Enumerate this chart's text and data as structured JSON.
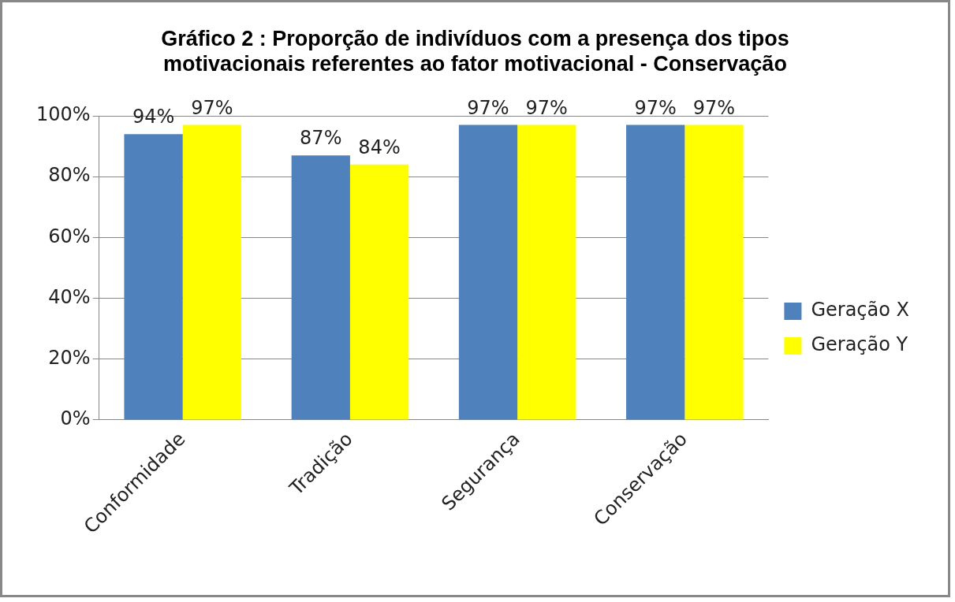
{
  "chart_data": {
    "type": "bar",
    "title": "Gráfico 2  : Proporção de indivíduos com a presença dos tipos motivacionais referentes ao fator motivacional - Conservação",
    "categories": [
      "Conformidade",
      "Tradição",
      "Segurança",
      "Conservação"
    ],
    "series": [
      {
        "name": "Geração X",
        "color": "#4f81bd",
        "values": [
          94,
          87,
          97,
          97
        ],
        "value_labels": [
          "94%",
          "87%",
          "97%",
          "97%"
        ]
      },
      {
        "name": "Geração Y",
        "color": "#ffff00",
        "values": [
          97,
          84,
          97,
          97
        ],
        "value_labels": [
          "97%",
          "84%",
          "97%",
          "97%"
        ]
      }
    ],
    "ylim": [
      0,
      100
    ],
    "yticks": [
      {
        "value": 0,
        "label": "0%"
      },
      {
        "value": 20,
        "label": "20%"
      },
      {
        "value": 40,
        "label": "40%"
      },
      {
        "value": 60,
        "label": "60%"
      },
      {
        "value": 80,
        "label": "80%"
      },
      {
        "value": 100,
        "label": "100%"
      }
    ],
    "grid": "y",
    "legend": "right"
  }
}
